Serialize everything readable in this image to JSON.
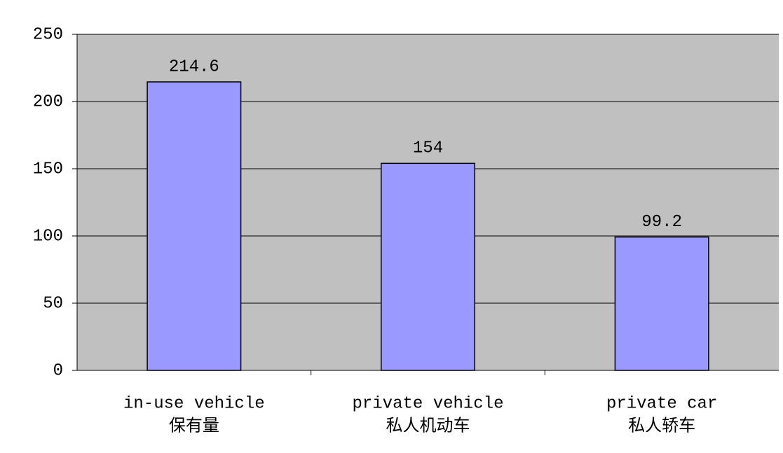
{
  "chart_data": {
    "type": "bar",
    "categories": [
      [
        "in-use vehicle",
        "保有量"
      ],
      [
        "private vehicle",
        "私人机动车"
      ],
      [
        "private car",
        "私人轿车"
      ]
    ],
    "values": [
      214.6,
      154,
      99.2
    ],
    "color": "#9999ff",
    "ylim": [
      0,
      250
    ],
    "yticks": [
      0,
      50,
      100,
      150,
      200,
      250
    ],
    "grid": true
  }
}
